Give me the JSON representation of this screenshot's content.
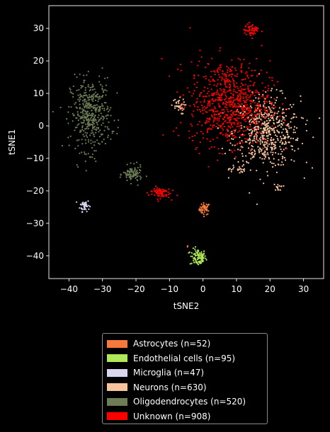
{
  "chart_data": {
    "type": "scatter",
    "title": "",
    "xlabel": "tSNE2",
    "ylabel": "tSNE1",
    "xlim": [
      -46,
      36
    ],
    "ylim": [
      -47,
      37
    ],
    "xticks": [
      -40,
      -30,
      -20,
      -10,
      0,
      10,
      20,
      30
    ],
    "yticks": [
      -40,
      -30,
      -20,
      -10,
      0,
      10,
      20,
      30
    ],
    "grid": false,
    "legend_position": "below",
    "series": [
      {
        "name": "Astrocytes (n=52)",
        "color": "#f4793b",
        "clusters": [
          {
            "cx": 0.5,
            "cy": -25.5,
            "sx": 0.8,
            "sy": 0.9,
            "n": 50
          },
          {
            "cx": -4.5,
            "cy": -37.0,
            "sx": 0.2,
            "sy": 0.2,
            "n": 2
          }
        ]
      },
      {
        "name": "Endothelial cells (n=95)",
        "color": "#b0e858",
        "clusters": [
          {
            "cx": -1.5,
            "cy": -40.5,
            "sx": 1.2,
            "sy": 1.3,
            "n": 95
          }
        ]
      },
      {
        "name": "Microglia (n=47)",
        "color": "#d9d4f0",
        "clusters": [
          {
            "cx": -35.3,
            "cy": -24.5,
            "sx": 0.7,
            "sy": 0.9,
            "n": 47
          }
        ]
      },
      {
        "name": "Neurons (n=630)",
        "color": "#f7c39d",
        "clusters": [
          {
            "cx": 19.0,
            "cy": -2.0,
            "sx": 5.0,
            "sy": 5.5,
            "n": 560
          },
          {
            "cx": -7.5,
            "cy": 6.0,
            "sx": 1.0,
            "sy": 1.2,
            "n": 35
          },
          {
            "cx": 22.5,
            "cy": -19.0,
            "sx": 0.7,
            "sy": 0.5,
            "n": 15
          },
          {
            "cx": 10.0,
            "cy": -13.5,
            "sx": 1.2,
            "sy": 0.6,
            "n": 20
          }
        ]
      },
      {
        "name": "Oligodendrocytes (n=520)",
        "color": "#6d7d56",
        "clusters": [
          {
            "cx": -33.5,
            "cy": 3.5,
            "sx": 3.0,
            "sy": 5.5,
            "n": 430
          },
          {
            "cx": -21.0,
            "cy": -15.0,
            "sx": 1.4,
            "sy": 1.3,
            "n": 90
          }
        ]
      },
      {
        "name": "Unknown (n=908)",
        "color": "#ff0000",
        "clusters": [
          {
            "cx": 8.0,
            "cy": 7.0,
            "sx": 6.0,
            "sy": 6.5,
            "n": 780
          },
          {
            "cx": 14.5,
            "cy": 29.5,
            "sx": 1.1,
            "sy": 1.0,
            "n": 55
          },
          {
            "cx": -13.0,
            "cy": -20.5,
            "sx": 1.6,
            "sy": 0.9,
            "n": 73
          }
        ]
      }
    ]
  }
}
